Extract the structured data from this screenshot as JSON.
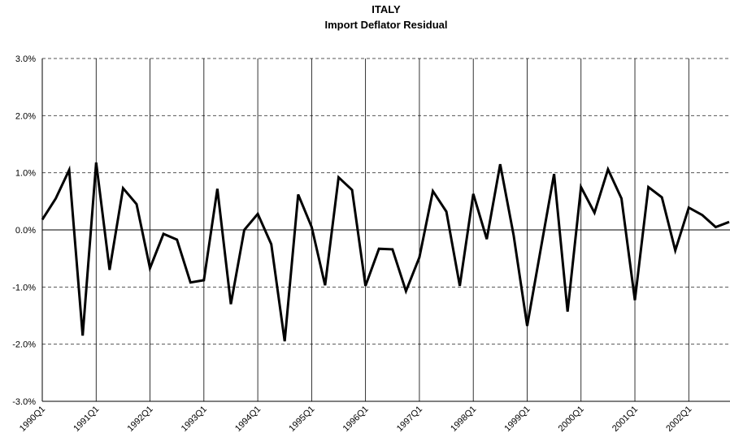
{
  "chart_data": {
    "type": "line",
    "title": "ITALY",
    "subtitle": "Import Deflator Residual",
    "categories": [
      "1990Q1",
      null,
      null,
      null,
      "1991Q1",
      null,
      null,
      null,
      "1992Q1",
      null,
      null,
      null,
      "1993Q1",
      null,
      null,
      null,
      "1994Q1",
      null,
      null,
      null,
      "1995Q1",
      null,
      null,
      null,
      "1996Q1",
      null,
      null,
      null,
      "1997Q1",
      null,
      null,
      null,
      "1998Q1",
      null,
      null,
      null,
      "1999Q1",
      null,
      null,
      null,
      "2000Q1",
      null,
      null,
      null,
      "2001Q1",
      null,
      null,
      null,
      "2002Q1",
      null,
      null,
      null
    ],
    "values": [
      0.18,
      0.55,
      1.05,
      -1.85,
      1.18,
      -0.7,
      0.73,
      0.45,
      -0.67,
      -0.07,
      -0.17,
      -0.92,
      -0.88,
      0.72,
      -1.3,
      0.0,
      0.28,
      -0.25,
      -1.95,
      0.62,
      0.05,
      -0.97,
      0.92,
      0.7,
      -0.98,
      -0.33,
      -0.34,
      -1.07,
      -0.48,
      0.68,
      0.32,
      -0.98,
      0.63,
      -0.16,
      1.15,
      -0.1,
      -1.68,
      -0.35,
      0.98,
      -1.43,
      0.75,
      0.3,
      1.06,
      0.55,
      -1.23,
      0.75,
      0.57,
      -0.36,
      0.39,
      0.26,
      0.05,
      0.14
    ],
    "color": "#000000",
    "ylim": [
      -3,
      3
    ],
    "yticks": [
      {
        "value": -3,
        "label": "-3.0%"
      },
      {
        "value": -2,
        "label": "-2.0%"
      },
      {
        "value": -1,
        "label": "-1.0%"
      },
      {
        "value": 0,
        "label": "0.0%"
      },
      {
        "value": 1,
        "label": "1.0%"
      },
      {
        "value": 2,
        "label": "2.0%"
      },
      {
        "value": 3,
        "label": "3.0%"
      }
    ],
    "grid": true
  }
}
